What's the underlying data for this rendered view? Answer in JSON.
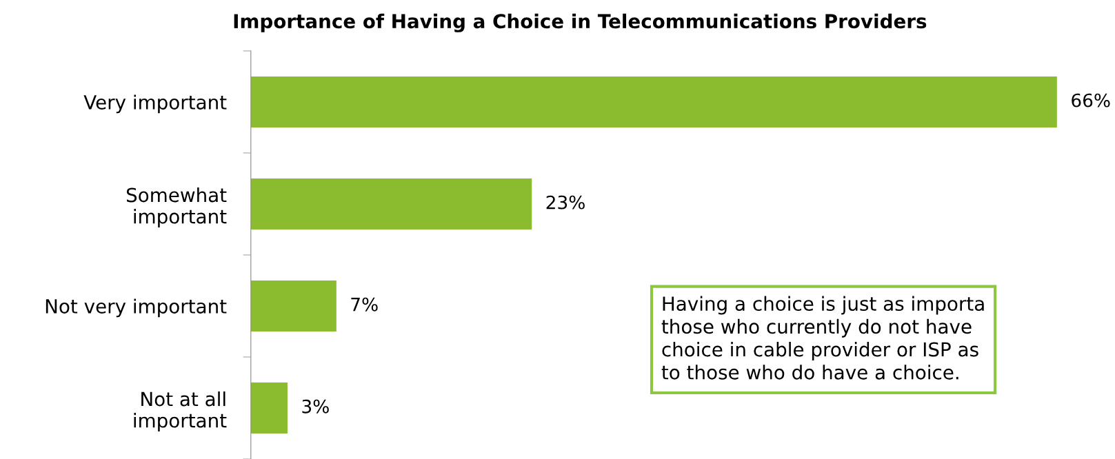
{
  "chart_data": {
    "type": "bar",
    "orientation": "horizontal",
    "title": "Importance of Having a Choice in Telecommunications Providers",
    "categories": [
      "Very important",
      "Somewhat\nimportant",
      "Not very important",
      "Not at all\nimportant"
    ],
    "values": [
      66,
      23,
      7,
      3
    ],
    "value_labels": [
      "66%",
      "23%",
      "7%",
      "3%"
    ],
    "color": "#8bbb2e",
    "grid": false,
    "legend": false,
    "annotations": [
      "Having a choice is just as importa\nthose who currently do not have\nchoice in cable provider or ISP as\nto those who do have a choice."
    ]
  }
}
